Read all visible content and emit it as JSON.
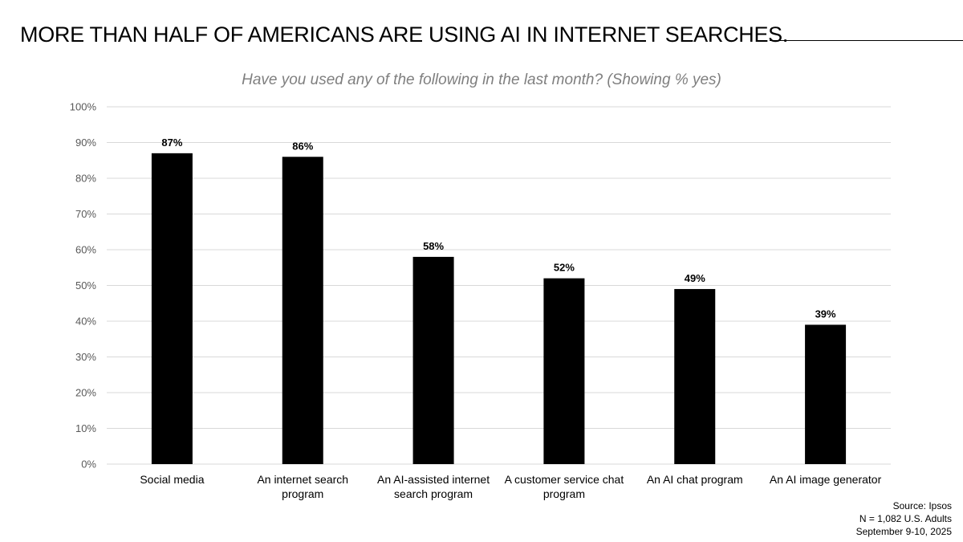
{
  "headline": "MORE THAN HALF OF AMERICANS ARE USING AI IN INTERNET SEARCHES.",
  "source": {
    "line1": "Source: Ipsos",
    "line2": "N = 1,082 U.S. Adults",
    "line3": "September 9-10, 2025"
  },
  "colors": {
    "bar": "#000000",
    "gridline": "#d9d9d9",
    "subtitle": "#7f7f7f"
  },
  "chart_data": {
    "type": "bar",
    "title": "Have you used any of the following in the last month? (Showing % yes)",
    "xlabel": "",
    "ylabel": "",
    "categories": [
      [
        "Social media"
      ],
      [
        "An internet search",
        "program"
      ],
      [
        "An AI-assisted internet",
        "search program"
      ],
      [
        "A customer service chat",
        "program"
      ],
      [
        "An AI chat program"
      ],
      [
        "An AI image generator"
      ]
    ],
    "values": [
      87,
      86,
      58,
      52,
      49,
      39
    ],
    "data_labels": [
      "87%",
      "86%",
      "58%",
      "52%",
      "49%",
      "39%"
    ],
    "ylim": [
      0,
      100
    ],
    "y_ticks": [
      0,
      10,
      20,
      30,
      40,
      50,
      60,
      70,
      80,
      90,
      100
    ],
    "y_tick_labels": [
      "0%",
      "10%",
      "20%",
      "30%",
      "40%",
      "50%",
      "60%",
      "70%",
      "80%",
      "90%",
      "100%"
    ],
    "grid": true,
    "legend": "none"
  }
}
